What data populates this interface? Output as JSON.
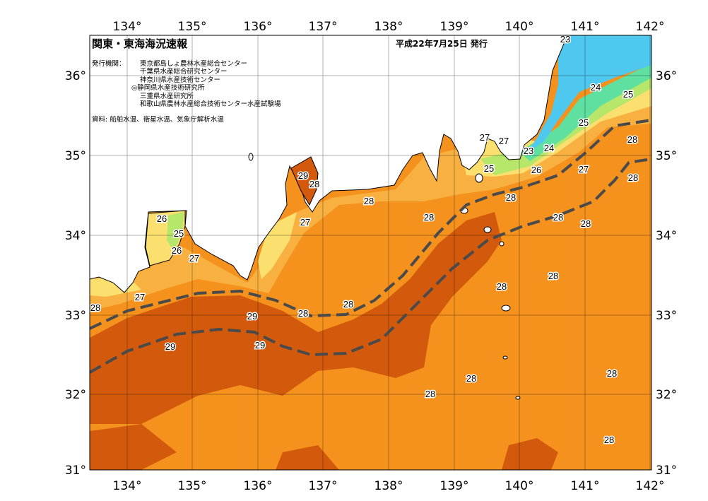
{
  "header": {
    "title": "関東・東海海況速報",
    "issue_date": "平成22年7月25日 発行",
    "publisher_label": "発行機関：",
    "publishers": [
      "東京都島しょ農林水産総合センター",
      "千葉県水産総合研究センター",
      "神奈川県水産技術センター",
      "◎静岡県水産技術研究所",
      "三重県水産研究所",
      "和歌山県農林水産総合技術センター水産試験場"
    ],
    "source": "資料: 船舶水温、衛星水温、気象庁解析水温"
  },
  "axes": {
    "longitude_labels": [
      "134°",
      "135°",
      "136°",
      "137°",
      "138°",
      "139°",
      "140°",
      "141°",
      "142°"
    ],
    "latitude_labels": [
      "36°",
      "35°",
      "34°",
      "33°",
      "32°",
      "31°"
    ]
  },
  "contour_labels": [
    "23",
    "24",
    "25",
    "25",
    "28",
    "27",
    "27",
    "23",
    "24",
    "25",
    "26",
    "27",
    "28",
    "29",
    "28",
    "28",
    "28",
    "28",
    "26",
    "28",
    "25",
    "27",
    "28",
    "26",
    "27",
    "28",
    "28",
    "27",
    "28",
    "28",
    "29",
    "28",
    "29",
    "29",
    "28",
    "28",
    "28",
    "28"
  ],
  "colors": {
    "sst_28": "#f5921e",
    "sst_29": "#d3590c",
    "sst_27": "#f8b040",
    "sst_26": "#fbe070",
    "sst_25": "#b6e66a",
    "sst_24": "#5fe0a0",
    "sst_23": "#4fc8f0",
    "kuroshio_axis": "#4a4a4a"
  }
}
